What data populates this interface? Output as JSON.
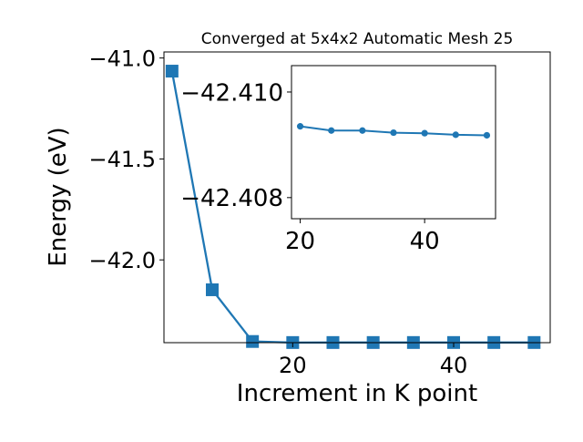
{
  "colors": {
    "series": "#1f77b4",
    "axes": "#000000",
    "background": "#ffffff"
  },
  "chart_data": [
    {
      "type": "line",
      "title": "Converged at 5x4x2 Automatic Mesh 25",
      "xlabel": "Increment in K point",
      "ylabel": "Energy (eV)",
      "xlim": [
        4,
        52
      ],
      "ylim": [
        -42.41,
        -40.97
      ],
      "xticks": [
        20,
        40
      ],
      "yticks": [
        -41.0,
        -41.5,
        -42.0
      ],
      "ytick_labels": [
        "−41.0",
        "−41.5",
        "−42.0"
      ],
      "marker": "square",
      "grid": false,
      "series": [
        {
          "x": [
            5,
            10,
            15,
            20,
            25,
            30,
            35,
            40,
            45,
            50
          ],
          "y": [
            -41.065,
            -42.148,
            -42.4042,
            -42.40935,
            -42.40927,
            -42.40927,
            -42.40923,
            -42.40922,
            -42.40919,
            -42.40918
          ]
        }
      ]
    },
    {
      "type": "line",
      "inset": true,
      "xlim": [
        18.6,
        51.4
      ],
      "ylim": [
        -42.4076,
        -42.4105
      ],
      "xticks": [
        20,
        40
      ],
      "yticks": [
        -42.41,
        -42.408
      ],
      "ytick_labels": [
        "−42.410",
        "−42.408"
      ],
      "marker": "circle",
      "grid": false,
      "series": [
        {
          "x": [
            20,
            25,
            30,
            35,
            40,
            45,
            50
          ],
          "y": [
            -42.40935,
            -42.40927,
            -42.40927,
            -42.40923,
            -42.40922,
            -42.40919,
            -42.40918
          ]
        }
      ]
    }
  ]
}
